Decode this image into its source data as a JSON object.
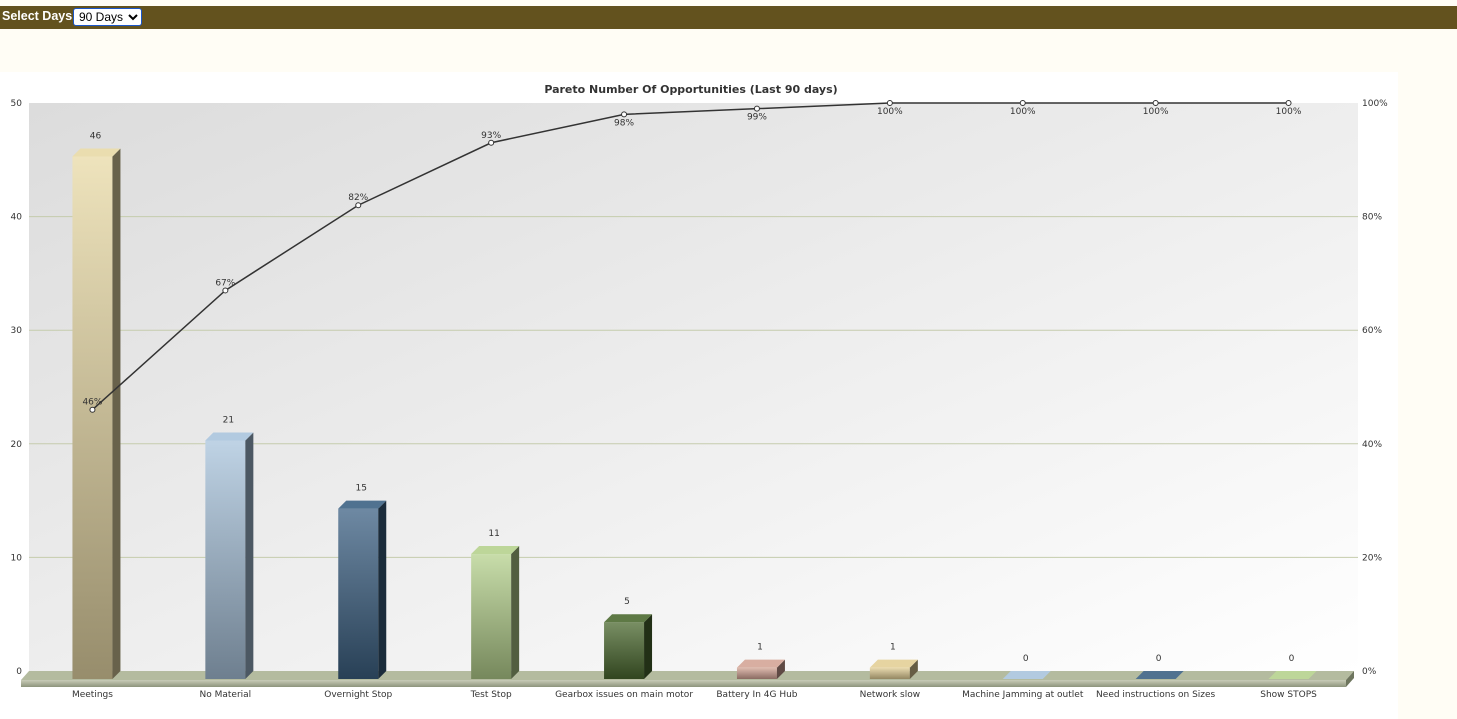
{
  "toolbar": {
    "select_days_label": "Select Days:",
    "days_selected": "90 Days",
    "days_options": [
      "90 Days"
    ]
  },
  "chart_data": {
    "type": "bar",
    "title": "Pareto Number Of Opportunities (Last 90 days)",
    "xlabel": "",
    "ylabel": "",
    "ylim": [
      0,
      50
    ],
    "y2lim": [
      0,
      100
    ],
    "y_ticks": [
      "0",
      "10",
      "20",
      "30",
      "40",
      "50"
    ],
    "y2_ticks": [
      "0%",
      "20%",
      "40%",
      "60%",
      "80%",
      "100%"
    ],
    "grid": true,
    "categories": [
      "Meetings",
      "No Material",
      "Overnight Stop",
      "Test Stop",
      "Gearbox issues on main motor",
      "Battery In 4G Hub",
      "Network slow",
      "Machine Jamming at outlet",
      "Need instructions on Sizes",
      "Show STOPS"
    ],
    "values": [
      46,
      21,
      15,
      11,
      5,
      1,
      1,
      0,
      0,
      0
    ],
    "value_labels": [
      "46",
      "21",
      "15",
      "11",
      "5",
      "1",
      "1",
      "0",
      "0",
      "0"
    ],
    "cumulative_percent": [
      46,
      67,
      82,
      93,
      98,
      99,
      100,
      100,
      100,
      100
    ],
    "cumulative_labels": [
      "46%",
      "67%",
      "82%",
      "93%",
      "98%",
      "99%",
      "100%",
      "100%",
      "100%",
      "100%"
    ],
    "bar_colors": [
      "#e8d9a6",
      "#a9c4dc",
      "#3d6284",
      "#b6d18e",
      "#4c6a30",
      "#d4a596",
      "#e3cf96",
      "#a9c4dc",
      "#3d6284",
      "#b6d18e"
    ],
    "line_color": "#333333"
  }
}
